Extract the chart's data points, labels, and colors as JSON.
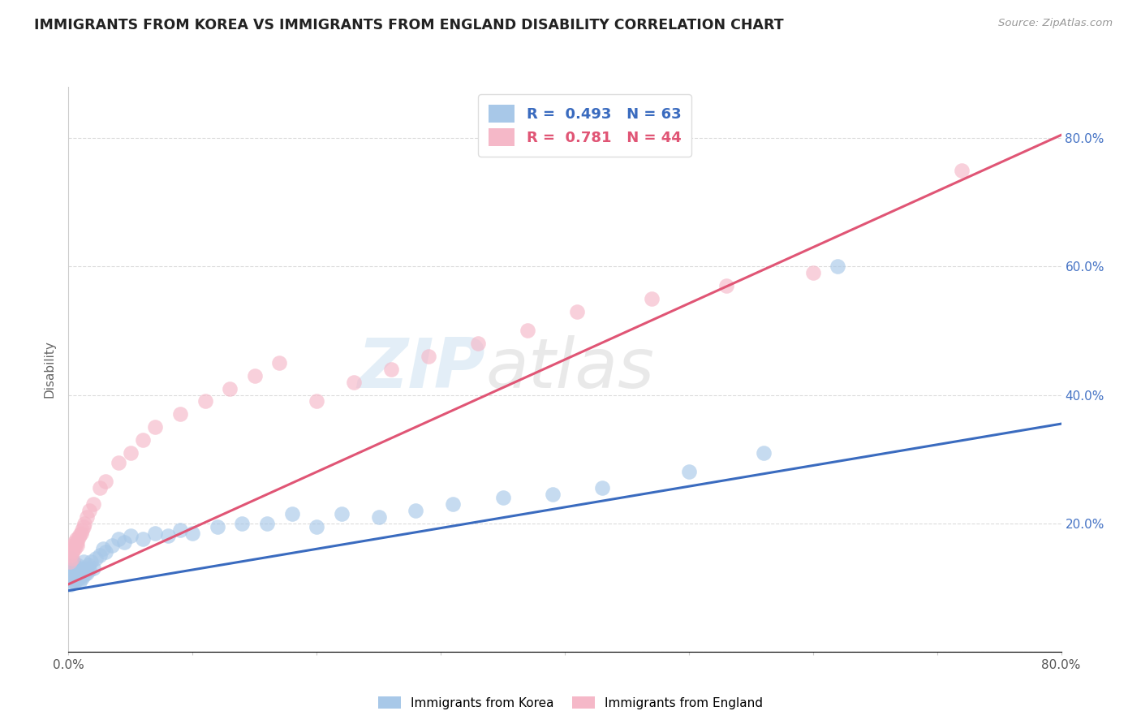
{
  "title": "IMMIGRANTS FROM KOREA VS IMMIGRANTS FROM ENGLAND DISABILITY CORRELATION CHART",
  "source": "Source: ZipAtlas.com",
  "ylabel": "Disability",
  "xlim": [
    0.0,
    0.8
  ],
  "ylim": [
    0.0,
    0.88
  ],
  "yticks": [
    0.0,
    0.2,
    0.4,
    0.6,
    0.8
  ],
  "ytick_labels": [
    "",
    "20.0%",
    "40.0%",
    "60.0%",
    "80.0%"
  ],
  "xticks": [
    0.0,
    0.1,
    0.2,
    0.3,
    0.4,
    0.5,
    0.6,
    0.7,
    0.8
  ],
  "korea_color": "#a8c8e8",
  "korea_color_dark": "#3a6bbf",
  "england_color": "#f5b8c8",
  "england_color_dark": "#e05575",
  "korea_R": 0.493,
  "korea_N": 63,
  "england_R": 0.781,
  "england_N": 44,
  "watermark_zip": "ZIP",
  "watermark_atlas": "atlas",
  "legend_korea": "Immigrants from Korea",
  "legend_england": "Immigrants from England",
  "korea_scatter_x": [
    0.001,
    0.001,
    0.002,
    0.002,
    0.002,
    0.003,
    0.003,
    0.003,
    0.004,
    0.004,
    0.004,
    0.005,
    0.005,
    0.005,
    0.006,
    0.006,
    0.006,
    0.007,
    0.007,
    0.008,
    0.008,
    0.009,
    0.009,
    0.01,
    0.01,
    0.011,
    0.012,
    0.012,
    0.013,
    0.014,
    0.015,
    0.016,
    0.017,
    0.018,
    0.02,
    0.022,
    0.025,
    0.028,
    0.03,
    0.035,
    0.04,
    0.045,
    0.05,
    0.06,
    0.07,
    0.08,
    0.09,
    0.1,
    0.12,
    0.14,
    0.16,
    0.18,
    0.2,
    0.22,
    0.25,
    0.28,
    0.31,
    0.35,
    0.39,
    0.43,
    0.5,
    0.56,
    0.62
  ],
  "korea_scatter_y": [
    0.135,
    0.115,
    0.125,
    0.105,
    0.145,
    0.11,
    0.13,
    0.12,
    0.125,
    0.115,
    0.14,
    0.12,
    0.108,
    0.13,
    0.118,
    0.128,
    0.112,
    0.122,
    0.135,
    0.115,
    0.125,
    0.108,
    0.13,
    0.118,
    0.128,
    0.115,
    0.125,
    0.14,
    0.12,
    0.13,
    0.122,
    0.135,
    0.128,
    0.14,
    0.13,
    0.145,
    0.15,
    0.16,
    0.155,
    0.165,
    0.175,
    0.17,
    0.18,
    0.175,
    0.185,
    0.18,
    0.19,
    0.185,
    0.195,
    0.2,
    0.2,
    0.215,
    0.195,
    0.215,
    0.21,
    0.22,
    0.23,
    0.24,
    0.245,
    0.255,
    0.28,
    0.31,
    0.6
  ],
  "england_scatter_x": [
    0.001,
    0.002,
    0.002,
    0.003,
    0.003,
    0.004,
    0.004,
    0.005,
    0.005,
    0.006,
    0.006,
    0.007,
    0.007,
    0.008,
    0.009,
    0.01,
    0.011,
    0.012,
    0.013,
    0.015,
    0.017,
    0.02,
    0.025,
    0.03,
    0.04,
    0.05,
    0.06,
    0.07,
    0.09,
    0.11,
    0.13,
    0.15,
    0.17,
    0.2,
    0.23,
    0.26,
    0.29,
    0.33,
    0.37,
    0.41,
    0.47,
    0.53,
    0.6,
    0.72
  ],
  "england_scatter_y": [
    0.14,
    0.15,
    0.16,
    0.155,
    0.145,
    0.165,
    0.158,
    0.16,
    0.17,
    0.168,
    0.175,
    0.172,
    0.165,
    0.178,
    0.182,
    0.185,
    0.19,
    0.195,
    0.2,
    0.21,
    0.22,
    0.23,
    0.255,
    0.265,
    0.295,
    0.31,
    0.33,
    0.35,
    0.37,
    0.39,
    0.41,
    0.43,
    0.45,
    0.39,
    0.42,
    0.44,
    0.46,
    0.48,
    0.5,
    0.53,
    0.55,
    0.57,
    0.59,
    0.75
  ],
  "korea_line_x": [
    0.0,
    0.8
  ],
  "korea_line_y": [
    0.095,
    0.355
  ],
  "england_line_x": [
    0.0,
    0.8
  ],
  "england_line_y": [
    0.105,
    0.805
  ],
  "background_color": "#ffffff",
  "grid_color": "#cccccc"
}
